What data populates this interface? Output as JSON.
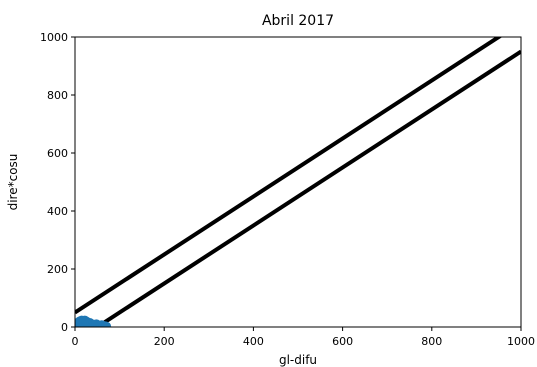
{
  "chart_data": {
    "type": "line",
    "title": "Abril 2017",
    "xlabel": "gl-difu",
    "ylabel": "dire*cosu",
    "xlim": [
      0,
      1000
    ],
    "ylim": [
      0,
      1000
    ],
    "xticks": [
      "0",
      "200",
      "400",
      "600",
      "800",
      "1000"
    ],
    "yticks": [
      "0",
      "200",
      "400",
      "600",
      "800",
      "1000"
    ],
    "grid": false,
    "series": [
      {
        "type": "line",
        "color": "#000000",
        "x": [
          0,
          1000
        ],
        "y": [
          50,
          1050
        ]
      },
      {
        "type": "line",
        "color": "#000000",
        "x": [
          0,
          1000
        ],
        "y": [
          -50,
          950
        ]
      },
      {
        "type": "scatter",
        "color": "#1f77b4",
        "x": [
          2,
          5,
          8,
          10,
          12,
          15,
          18,
          20,
          22,
          25,
          28,
          30,
          33,
          36,
          40,
          44,
          48,
          52,
          56,
          60,
          64,
          68,
          70
        ],
        "y": [
          3,
          10,
          14,
          18,
          20,
          22,
          18,
          15,
          22,
          19,
          16,
          12,
          14,
          10,
          8,
          6,
          9,
          5,
          4,
          6,
          3,
          2,
          1
        ]
      }
    ]
  }
}
